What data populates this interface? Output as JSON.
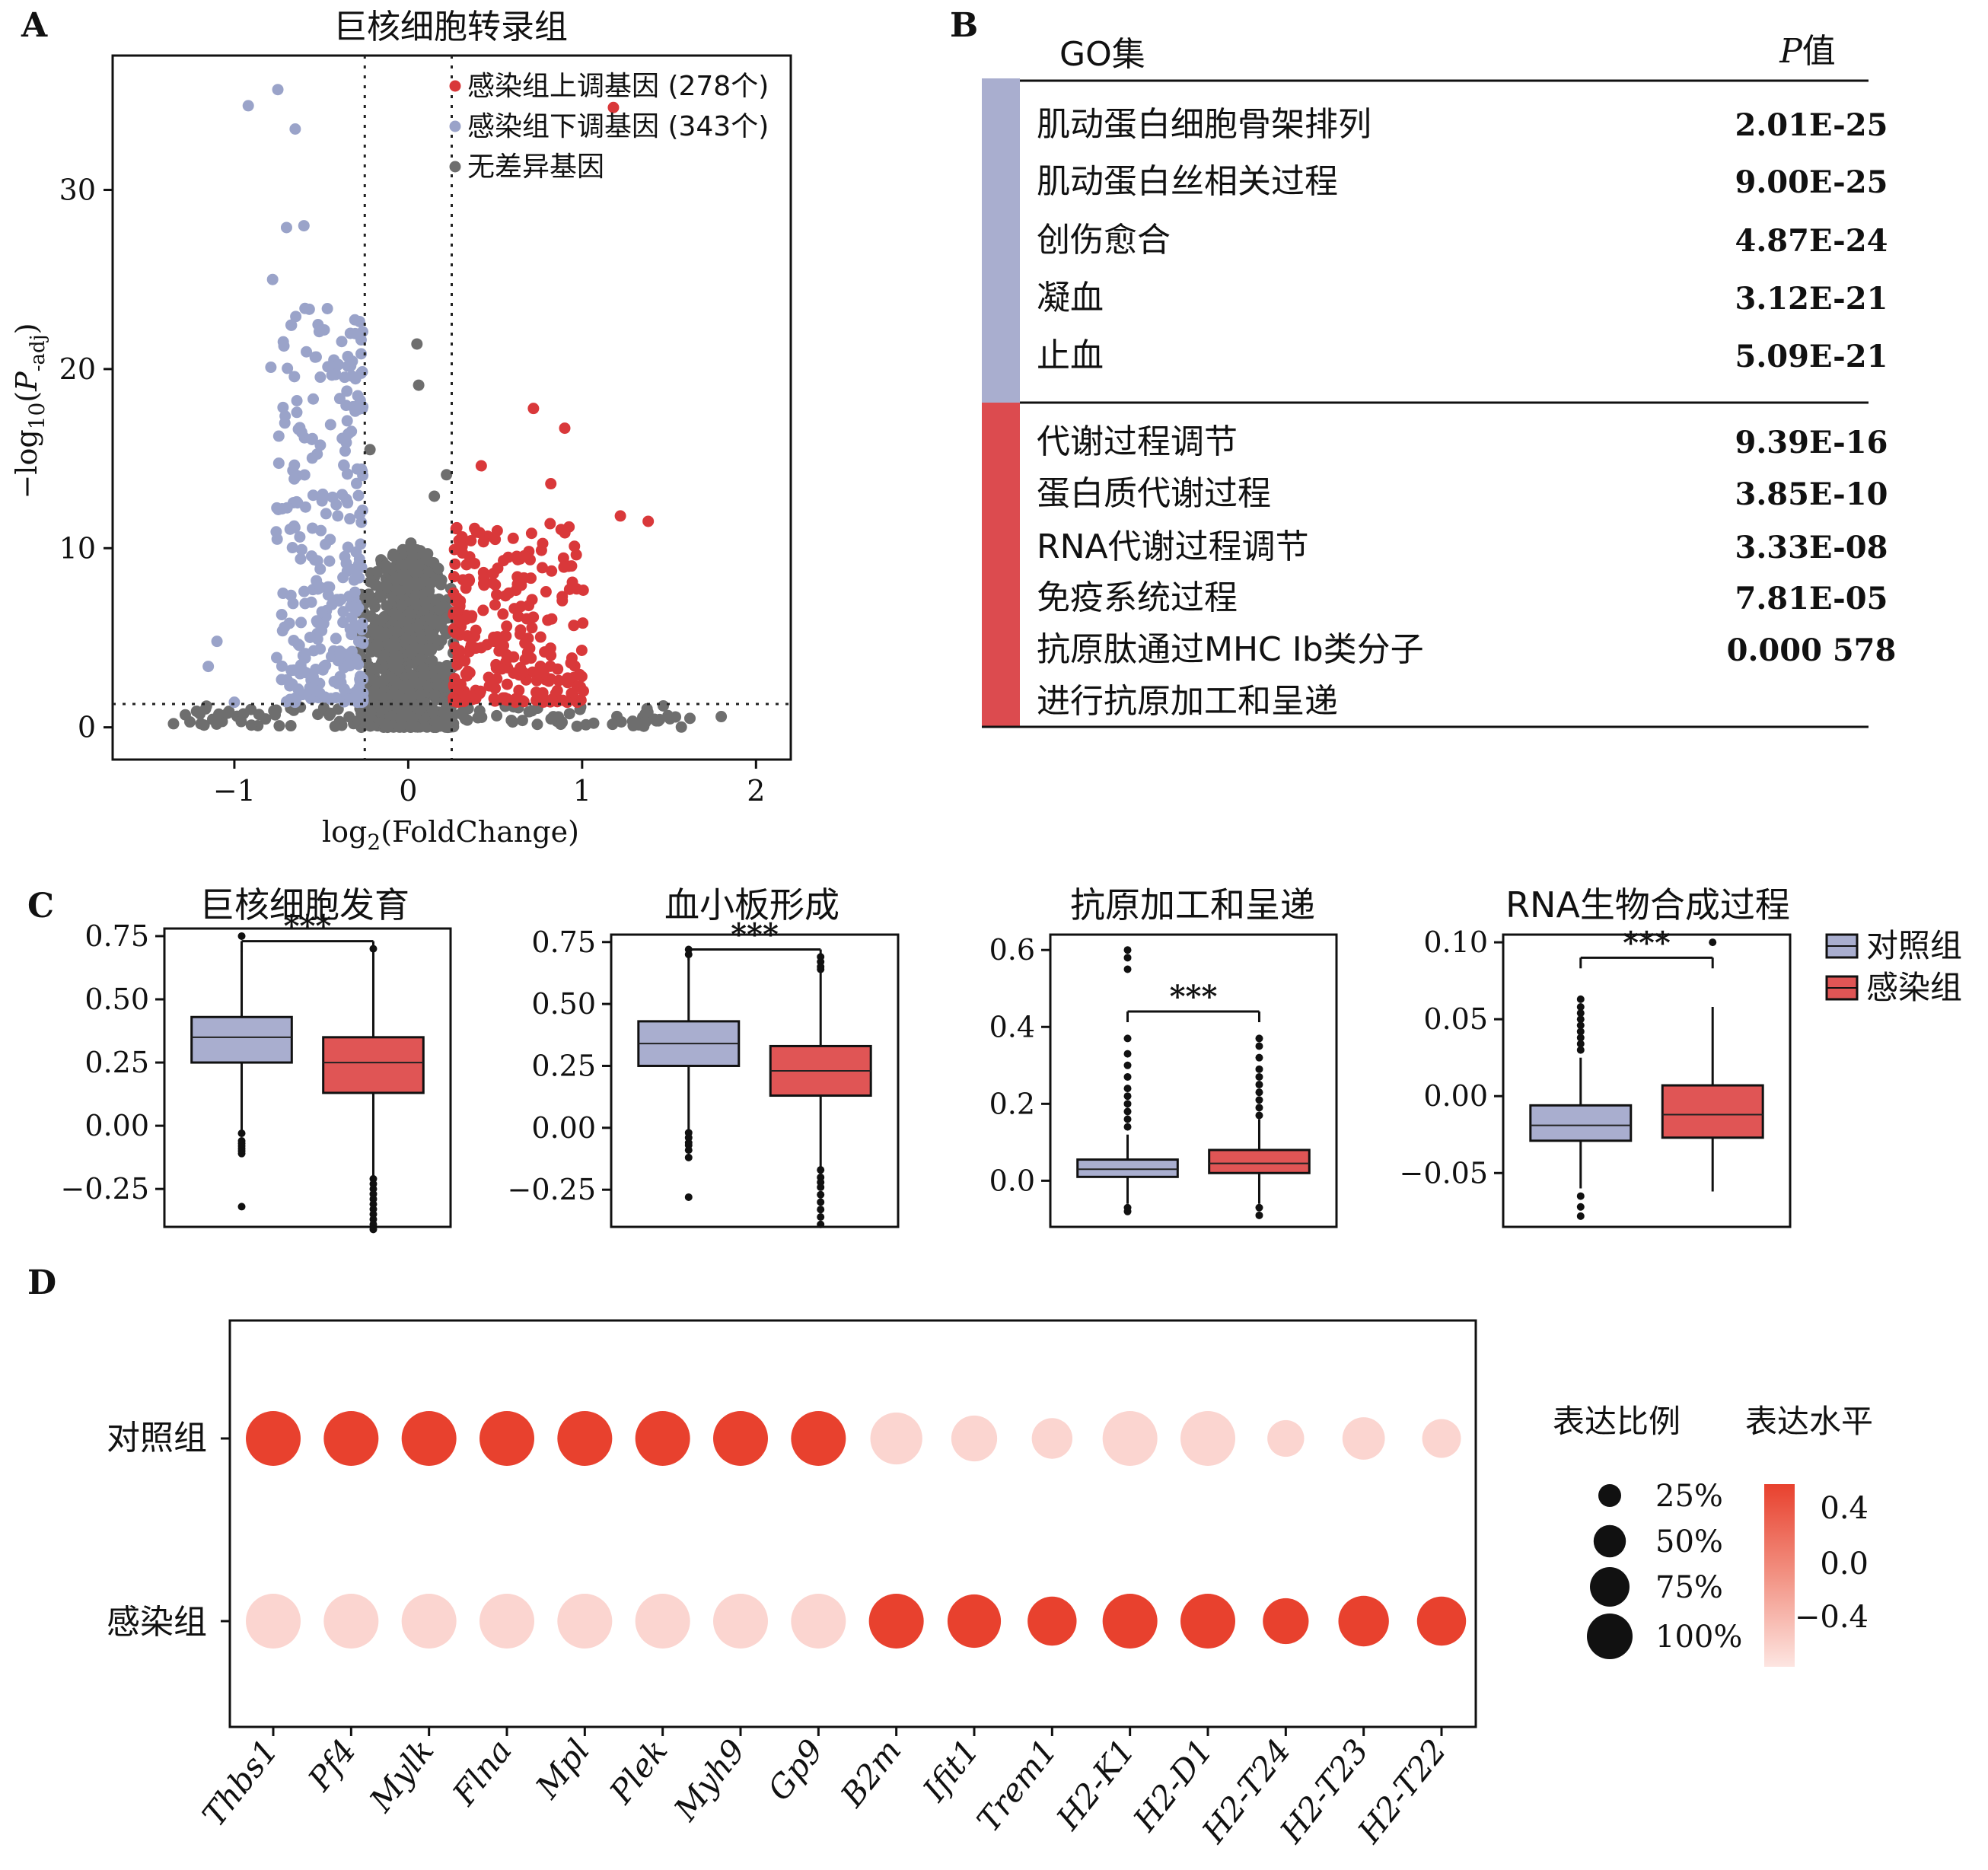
{
  "panels": {
    "a": "A",
    "b": "B",
    "c": "C",
    "d": "D"
  },
  "colors": {
    "up": "#d9383a",
    "down": "#9aa3c9",
    "nodiff": "#6e6e6e",
    "ctrl_box": "#a9aecf",
    "inf_box": "#e05555",
    "dot_high": "#e8412e",
    "dot_low": "#fbd5d0"
  },
  "chart_data": [
    {
      "id": "A",
      "type": "scatter",
      "title": "巨核细胞转录组",
      "xlabel": "log2(FoldChange)",
      "ylabel": "−log10(P-adj)",
      "xlim": [
        -1.7,
        2.2
      ],
      "ylim": [
        -1.8,
        37.5
      ],
      "xticks": [
        "−1",
        "0",
        "1",
        "2"
      ],
      "yticks": [
        "0",
        "10",
        "20",
        "30"
      ],
      "thresholds": {
        "log2fc": [
          -0.25,
          0.25
        ],
        "neg_log10_padj": 1.3
      },
      "legend": [
        "感染组上调基因 (278个)",
        "感染组下调基因 (343个)",
        "无差异基因"
      ],
      "legend_position": "top-right",
      "series": [
        {
          "name": "感染组上调基因 (278个)",
          "count": 278,
          "highlight_points": [
            [
              1.18,
              34.6
            ],
            [
              0.72,
              17.8
            ],
            [
              0.9,
              16.7
            ],
            [
              1.38,
              11.5
            ],
            [
              1.22,
              11.8
            ],
            [
              0.42,
              14.6
            ],
            [
              0.82,
              13.6
            ]
          ]
        },
        {
          "name": "感染组下调基因 (343个)",
          "count": 343,
          "highlight_points": [
            [
              -0.75,
              35.6
            ],
            [
              -0.92,
              34.7
            ],
            [
              -0.65,
              33.4
            ],
            [
              -0.7,
              27.9
            ],
            [
              -0.6,
              28.0
            ],
            [
              -0.78,
              25.0
            ],
            [
              -0.79,
              20.1
            ],
            [
              -1.1,
              4.8
            ],
            [
              -1.15,
              3.4
            ],
            [
              -1.0,
              1.4
            ]
          ]
        },
        {
          "name": "无差异基因",
          "highlight_points": [
            [
              0.05,
              21.4
            ],
            [
              0.06,
              19.1
            ],
            [
              -0.22,
              15.5
            ],
            [
              0.22,
              14.1
            ],
            [
              0.15,
              12.9
            ],
            [
              -1.35,
              0.2
            ],
            [
              1.62,
              0.5
            ],
            [
              1.8,
              0.6
            ]
          ]
        }
      ]
    },
    {
      "id": "B",
      "type": "table",
      "columns": [
        "GO集",
        "P值"
      ],
      "groups": [
        {
          "color": "#a9aecf",
          "rows": [
            {
              "term": "肌动蛋白细胞骨架排列",
              "p": "2.01E-25"
            },
            {
              "term": "肌动蛋白丝相关过程",
              "p": "9.00E-25"
            },
            {
              "term": "创伤愈合",
              "p": "4.87E-24"
            },
            {
              "term": "凝血",
              "p": "3.12E-21"
            },
            {
              "term": "止血",
              "p": "5.09E-21"
            }
          ]
        },
        {
          "color": "#dc4b4f",
          "rows": [
            {
              "term": "代谢过程调节",
              "p": "9.39E-16"
            },
            {
              "term": "蛋白质代谢过程",
              "p": "3.85E-10"
            },
            {
              "term": "RNA代谢过程调节",
              "p": "3.33E-08"
            },
            {
              "term": "免疫系统过程",
              "p": "7.81E-05"
            },
            {
              "term": "抗原肽通过MHC Ⅰb类分子",
              "term2": "进行抗原加工和呈递",
              "p": "0.000 578"
            }
          ]
        }
      ]
    },
    {
      "id": "C",
      "type": "box",
      "legend": [
        "对照组",
        "感染组"
      ],
      "legend_position": "right",
      "significance": "***",
      "plots": [
        {
          "title": "巨核细胞发育",
          "ylim": [
            -0.4,
            0.78
          ],
          "yticks": [
            0.75,
            0.5,
            0.25,
            0.0,
            -0.25
          ],
          "ytick_labels": [
            "0.75",
            "0.50",
            "0.25",
            "0.00",
            "−0.25"
          ],
          "groups": [
            {
              "name": "对照组",
              "q1": 0.25,
              "median": 0.35,
              "q3": 0.43,
              "whisker_low": -0.03,
              "whisker_high": 0.73,
              "outliers": [
                -0.03,
                -0.06,
                -0.07,
                -0.08,
                -0.09,
                -0.1,
                -0.11,
                -0.32,
                0.75
              ]
            },
            {
              "name": "感染组",
              "q1": 0.13,
              "median": 0.25,
              "q3": 0.35,
              "whisker_low": -0.2,
              "whisker_high": 0.69,
              "outliers": [
                0.7,
                -0.21,
                -0.23,
                -0.25,
                -0.27,
                -0.29,
                -0.31,
                -0.33,
                -0.35,
                -0.37,
                -0.39,
                -0.41
              ]
            }
          ],
          "sig_y": 0.73
        },
        {
          "title": "血小板形成",
          "ylim": [
            -0.4,
            0.78
          ],
          "yticks": [
            0.75,
            0.5,
            0.25,
            0.0,
            -0.25
          ],
          "ytick_labels": [
            "0.75",
            "0.50",
            "0.25",
            "0.00",
            "−0.25"
          ],
          "groups": [
            {
              "name": "对照组",
              "q1": 0.25,
              "median": 0.34,
              "q3": 0.43,
              "whisker_low": -0.02,
              "whisker_high": 0.71,
              "outliers": [
                0.72,
                0.7,
                -0.02,
                -0.04,
                -0.06,
                -0.07,
                -0.09,
                -0.12,
                -0.28
              ]
            },
            {
              "name": "感染组",
              "q1": 0.13,
              "median": 0.23,
              "q3": 0.33,
              "whisker_low": -0.16,
              "whisker_high": 0.63,
              "outliers": [
                0.69,
                0.67,
                0.64,
                0.65,
                -0.17,
                -0.2,
                -0.22,
                -0.24,
                -0.27,
                -0.3,
                -0.33,
                -0.36,
                -0.39
              ]
            }
          ],
          "sig_y": 0.72
        },
        {
          "title": "抗原加工和呈递",
          "ylim": [
            -0.12,
            0.64
          ],
          "yticks": [
            0.6,
            0.4,
            0.2,
            0.0
          ],
          "ytick_labels": [
            "0.6",
            "0.4",
            "0.2",
            "0.0"
          ],
          "groups": [
            {
              "name": "对照组",
              "q1": 0.01,
              "median": 0.03,
              "q3": 0.055,
              "whisker_low": -0.06,
              "whisker_high": 0.12,
              "outliers": [
                0.6,
                0.58,
                0.55,
                0.37,
                0.33,
                0.3,
                0.27,
                0.24,
                0.22,
                0.2,
                0.18,
                0.16,
                0.14,
                -0.07,
                -0.08
              ]
            },
            {
              "name": "感染组",
              "q1": 0.02,
              "median": 0.045,
              "q3": 0.08,
              "whisker_low": -0.06,
              "whisker_high": 0.16,
              "outliers": [
                0.37,
                0.35,
                0.32,
                0.29,
                0.27,
                0.25,
                0.23,
                0.21,
                0.19,
                0.17,
                -0.07,
                -0.09
              ]
            }
          ],
          "sig_y": 0.44
        },
        {
          "title": "RNA生物合成过程",
          "ylim": [
            -0.085,
            0.105
          ],
          "yticks": [
            0.1,
            0.05,
            0.0,
            -0.05
          ],
          "ytick_labels": [
            "0.10",
            "0.05",
            "0.00",
            "−0.05"
          ],
          "groups": [
            {
              "name": "对照组",
              "q1": -0.029,
              "median": -0.019,
              "q3": -0.006,
              "whisker_low": -0.06,
              "whisker_high": 0.025,
              "outliers": [
                0.063,
                0.058,
                0.054,
                0.05,
                0.046,
                0.042,
                0.038,
                0.034,
                0.03,
                -0.065,
                -0.072,
                -0.078
              ]
            },
            {
              "name": "感染组",
              "q1": -0.027,
              "median": -0.012,
              "q3": 0.007,
              "whisker_low": -0.062,
              "whisker_high": 0.058,
              "outliers": [
                0.1
              ]
            }
          ],
          "sig_y": 0.09
        }
      ]
    },
    {
      "id": "D",
      "type": "dot",
      "rows": [
        "对照组",
        "感染组"
      ],
      "genes": [
        "Thbs1",
        "Pf4",
        "Mylk",
        "Flna",
        "Mpl",
        "Plek",
        "Myh9",
        "Gp9",
        "B2m",
        "Ifit1",
        "Trem1",
        "H2-K1",
        "H2-D1",
        "H2-T24",
        "H2-T23",
        "H2-T22"
      ],
      "pct_expressed": [
        [
          1.0,
          1.0,
          1.0,
          1.0,
          1.0,
          1.0,
          1.0,
          1.0,
          0.9,
          0.7,
          0.55,
          1.0,
          1.0,
          0.45,
          0.6,
          0.5
        ],
        [
          1.0,
          1.0,
          1.0,
          1.0,
          1.0,
          1.0,
          1.0,
          1.0,
          1.0,
          0.95,
          0.8,
          1.0,
          1.0,
          0.7,
          0.85,
          0.8
        ]
      ],
      "avg_expression": [
        [
          0.5,
          0.5,
          0.5,
          0.5,
          0.5,
          0.5,
          0.5,
          0.5,
          -0.5,
          -0.5,
          -0.5,
          -0.5,
          -0.5,
          -0.5,
          -0.5,
          -0.5
        ],
        [
          -0.5,
          -0.5,
          -0.5,
          -0.5,
          -0.5,
          -0.5,
          -0.5,
          -0.5,
          0.5,
          0.5,
          0.5,
          0.5,
          0.5,
          0.5,
          0.5,
          0.5
        ]
      ],
      "size_legend": {
        "title": "表达比例",
        "labels": [
          "25%",
          "50%",
          "75%",
          "100%"
        ],
        "values": [
          0.25,
          0.5,
          0.75,
          1.0
        ]
      },
      "color_legend": {
        "title": "表达水平",
        "labels": [
          "0.4",
          "0.0",
          "−0.4"
        ],
        "values": [
          0.4,
          0.0,
          -0.4
        ]
      }
    }
  ]
}
